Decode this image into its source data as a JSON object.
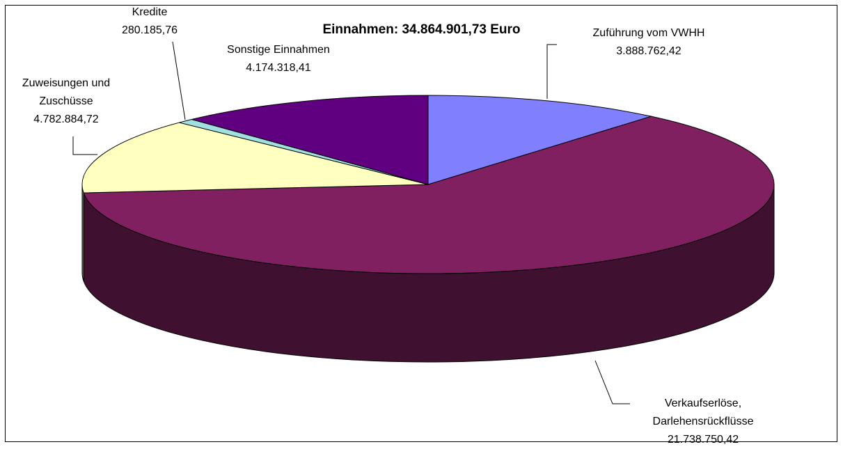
{
  "chart_data": {
    "type": "pie3d",
    "title": "Einnahmen: 34.864.901,73 Euro",
    "categories": [
      "Zuführung vom VWHH",
      "Verkaufserlöse, Darlehensrückflüsse",
      "Zuweisungen und Zuschüsse",
      "Kredite",
      "Sonstige Einnahmen"
    ],
    "values": [
      3888762.42,
      21738750.42,
      4782884.72,
      280185.76,
      4174318.41
    ],
    "value_labels": [
      "3.888.762,42",
      "21.738.750,42",
      "4.782.884,72",
      "280.185,76",
      "4.174.318,41"
    ],
    "colors": [
      "#8080ff",
      "#802060",
      "#ffffc0",
      "#a0e0e0",
      "#600080"
    ]
  }
}
